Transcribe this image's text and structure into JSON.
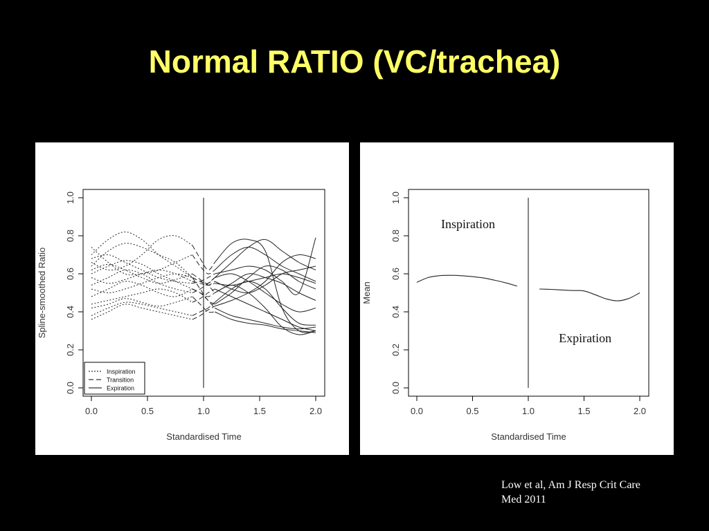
{
  "slide": {
    "title": "Normal RATIO (VC/trachea)",
    "citation_line1": "Low et al, Am J Resp Crit Care",
    "citation_line2": "Med 2011",
    "title_color": "#ffff66",
    "background": "#000000"
  },
  "chart_data": [
    {
      "type": "line",
      "xlabel": "Standardised Time",
      "ylabel": "Spline-smoothed Ratio",
      "xlim": [
        0,
        2
      ],
      "ylim": [
        0,
        1
      ],
      "xticks": [
        "0.0",
        "0.5",
        "1.0",
        "1.5",
        "2.0"
      ],
      "yticks": [
        "0.0",
        "0.2",
        "0.4",
        "0.6",
        "0.8",
        "1.0"
      ],
      "vline": 1.0,
      "legend": {
        "position": "bottom-left",
        "entries": [
          {
            "label": "Inspiration",
            "style": "dotted"
          },
          {
            "label": "Transition",
            "style": "dashed"
          },
          {
            "label": "Expiration",
            "style": "solid"
          }
        ]
      },
      "series_groups": {
        "inspiration": {
          "x": [
            0,
            0.15,
            0.3,
            0.45,
            0.6,
            0.75,
            0.9
          ],
          "lines": [
            [
              0.74,
              0.66,
              0.6,
              0.6,
              0.62,
              0.66,
              0.7
            ],
            [
              0.7,
              0.78,
              0.82,
              0.78,
              0.7,
              0.64,
              0.58
            ],
            [
              0.64,
              0.72,
              0.76,
              0.74,
              0.7,
              0.66,
              0.58
            ],
            [
              0.66,
              0.62,
              0.64,
              0.7,
              0.78,
              0.8,
              0.75
            ],
            [
              0.62,
              0.65,
              0.62,
              0.58,
              0.55,
              0.57,
              0.6
            ],
            [
              0.58,
              0.55,
              0.57,
              0.6,
              0.62,
              0.6,
              0.56
            ],
            [
              0.54,
              0.58,
              0.62,
              0.6,
              0.55,
              0.52,
              0.5
            ],
            [
              0.52,
              0.5,
              0.52,
              0.55,
              0.58,
              0.6,
              0.58
            ],
            [
              0.48,
              0.52,
              0.56,
              0.54,
              0.5,
              0.48,
              0.52
            ],
            [
              0.44,
              0.46,
              0.48,
              0.5,
              0.52,
              0.5,
              0.45
            ],
            [
              0.42,
              0.44,
              0.47,
              0.45,
              0.43,
              0.45,
              0.48
            ],
            [
              0.38,
              0.42,
              0.45,
              0.44,
              0.42,
              0.4,
              0.38
            ],
            [
              0.36,
              0.4,
              0.44,
              0.42,
              0.4,
              0.38,
              0.36
            ],
            [
              0.6,
              0.64,
              0.67,
              0.65,
              0.6,
              0.56,
              0.52
            ],
            [
              0.68,
              0.7,
              0.66,
              0.62,
              0.58,
              0.56,
              0.55
            ]
          ]
        },
        "transition": {
          "x": [
            0.9,
            0.97,
            1.04,
            1.1
          ],
          "lines": [
            [
              0.7,
              0.64,
              0.6,
              0.62
            ],
            [
              0.58,
              0.56,
              0.55,
              0.58
            ],
            [
              0.58,
              0.52,
              0.46,
              0.44
            ],
            [
              0.75,
              0.68,
              0.62,
              0.66
            ],
            [
              0.6,
              0.57,
              0.54,
              0.5
            ],
            [
              0.56,
              0.55,
              0.54,
              0.56
            ],
            [
              0.5,
              0.52,
              0.55,
              0.58
            ],
            [
              0.58,
              0.56,
              0.54,
              0.55
            ],
            [
              0.52,
              0.5,
              0.46,
              0.42
            ],
            [
              0.45,
              0.47,
              0.5,
              0.52
            ],
            [
              0.48,
              0.44,
              0.4,
              0.4
            ],
            [
              0.38,
              0.4,
              0.42,
              0.45
            ],
            [
              0.36,
              0.38,
              0.41,
              0.43
            ],
            [
              0.52,
              0.5,
              0.48,
              0.5
            ],
            [
              0.55,
              0.56,
              0.58,
              0.6
            ]
          ]
        },
        "expiration": {
          "x": [
            1.1,
            1.25,
            1.4,
            1.55,
            1.7,
            1.85,
            2.0
          ],
          "lines": [
            [
              0.62,
              0.7,
              0.74,
              0.7,
              0.64,
              0.6,
              0.56
            ],
            [
              0.58,
              0.66,
              0.74,
              0.78,
              0.72,
              0.66,
              0.62
            ],
            [
              0.44,
              0.5,
              0.58,
              0.64,
              0.62,
              0.56,
              0.52
            ],
            [
              0.66,
              0.76,
              0.78,
              0.72,
              0.42,
              0.3,
              0.3
            ],
            [
              0.5,
              0.55,
              0.6,
              0.58,
              0.55,
              0.5,
              0.46
            ],
            [
              0.56,
              0.52,
              0.5,
              0.54,
              0.6,
              0.62,
              0.64
            ],
            [
              0.58,
              0.6,
              0.56,
              0.5,
              0.44,
              0.4,
              0.42
            ],
            [
              0.55,
              0.54,
              0.56,
              0.58,
              0.6,
              0.58,
              0.55
            ],
            [
              0.42,
              0.38,
              0.36,
              0.34,
              0.32,
              0.31,
              0.32
            ],
            [
              0.52,
              0.48,
              0.44,
              0.4,
              0.36,
              0.32,
              0.3
            ],
            [
              0.4,
              0.36,
              0.34,
              0.33,
              0.31,
              0.3,
              0.29
            ],
            [
              0.45,
              0.52,
              0.56,
              0.52,
              0.42,
              0.34,
              0.33
            ],
            [
              0.43,
              0.46,
              0.5,
              0.56,
              0.66,
              0.7,
              0.68
            ],
            [
              0.5,
              0.54,
              0.5,
              0.42,
              0.32,
              0.28,
              0.3
            ],
            [
              0.6,
              0.62,
              0.64,
              0.62,
              0.56,
              0.5,
              0.79
            ]
          ]
        }
      }
    },
    {
      "type": "line",
      "xlabel": "Standardised Time",
      "ylabel": "Mean",
      "xlim": [
        0,
        2
      ],
      "ylim": [
        0,
        1
      ],
      "xticks": [
        "0.0",
        "0.5",
        "1.0",
        "1.5",
        "2.0"
      ],
      "yticks": [
        "0.0",
        "0.2",
        "0.4",
        "0.6",
        "0.8",
        "1.0"
      ],
      "vline": 1.0,
      "annotations": [
        {
          "text": "Inspiration",
          "x": 0.46,
          "y": 0.84
        },
        {
          "text": "Expiration",
          "x": 1.51,
          "y": 0.24
        }
      ],
      "series": [
        {
          "x": [
            0.0,
            0.1,
            0.2,
            0.3,
            0.4,
            0.5,
            0.6,
            0.7,
            0.8,
            0.9
          ],
          "values": [
            0.555,
            0.58,
            0.59,
            0.592,
            0.59,
            0.585,
            0.578,
            0.566,
            0.552,
            0.535
          ]
        },
        {
          "x": [
            1.1,
            1.2,
            1.3,
            1.4,
            1.5,
            1.6,
            1.7,
            1.8,
            1.9,
            2.0
          ],
          "values": [
            0.52,
            0.518,
            0.515,
            0.512,
            0.51,
            0.49,
            0.468,
            0.458,
            0.47,
            0.5
          ]
        }
      ]
    }
  ]
}
